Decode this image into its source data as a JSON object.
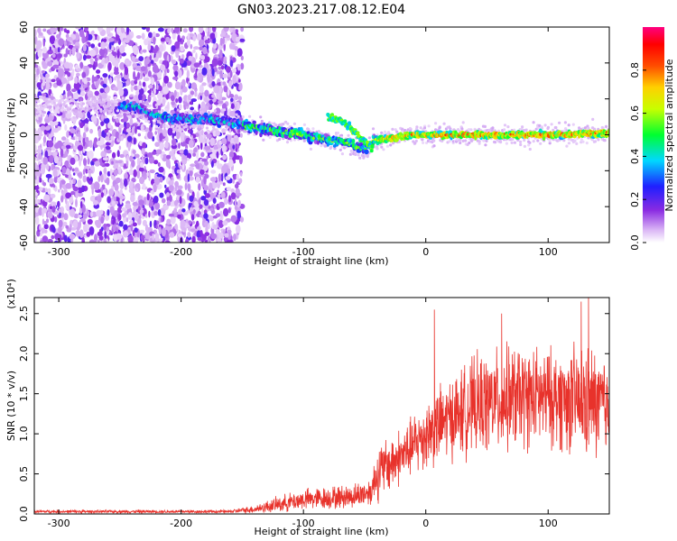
{
  "title": "GN03.2023.217.08.12.E04",
  "chart_data": [
    {
      "type": "heatmap",
      "xlabel": "Height of straight line (km)",
      "ylabel": "Frequency (Hz)",
      "xlim": [
        -320,
        150
      ],
      "ylim": [
        -60,
        60
      ],
      "xticks": [
        -300,
        -200,
        -100,
        0,
        100
      ],
      "yticks": [
        -60,
        -40,
        -20,
        0,
        20,
        40,
        60
      ],
      "grid": false,
      "colorbar": {
        "label": "Normalized spectral amplitude",
        "range": [
          0.0,
          1.0
        ],
        "ticks": [
          0.0,
          0.2,
          0.4,
          0.6,
          0.8
        ],
        "colormap": "rainbow"
      },
      "ridge_centerline": [
        {
          "x": -240,
          "y": 16
        },
        {
          "x": -225,
          "y": 12
        },
        {
          "x": -210,
          "y": 9
        },
        {
          "x": -190,
          "y": 9
        },
        {
          "x": -170,
          "y": 8
        },
        {
          "x": -155,
          "y": 6
        },
        {
          "x": -140,
          "y": 4
        },
        {
          "x": -120,
          "y": 2
        },
        {
          "x": -100,
          "y": 0
        },
        {
          "x": -80,
          "y": -3
        },
        {
          "x": -65,
          "y": -4
        },
        {
          "x": -50,
          "y": -8
        },
        {
          "x": -42,
          "y": -3
        },
        {
          "x": -30,
          "y": -2
        },
        {
          "x": -10,
          "y": 0
        },
        {
          "x": 20,
          "y": 0
        },
        {
          "x": 50,
          "y": 0
        },
        {
          "x": 80,
          "y": 0
        },
        {
          "x": 110,
          "y": 0
        },
        {
          "x": 150,
          "y": 1
        }
      ],
      "upper_branch": [
        {
          "x": -80,
          "y": 10
        },
        {
          "x": -70,
          "y": 8
        },
        {
          "x": -60,
          "y": 3
        },
        {
          "x": -50,
          "y": -4
        },
        {
          "x": -43,
          "y": -8
        }
      ]
    },
    {
      "type": "line",
      "xlabel": "Height of straight line (km)",
      "ylabel": "SNR (10 * v/v)",
      "y_multiplier": "(x10⁴)",
      "xlim": [
        -320,
        150
      ],
      "ylim": [
        0,
        2.7
      ],
      "xticks": [
        -300,
        -200,
        -100,
        0,
        100
      ],
      "yticks": [
        0.0,
        0.5,
        1.0,
        1.5,
        2.0,
        2.5
      ],
      "grid": false,
      "series": [
        {
          "color": "#e8322b",
          "envelope": [
            {
              "x": -320,
              "mean": 0.03,
              "amp": 0.02
            },
            {
              "x": -160,
              "mean": 0.03,
              "amp": 0.02
            },
            {
              "x": -140,
              "mean": 0.06,
              "amp": 0.05
            },
            {
              "x": -120,
              "mean": 0.12,
              "amp": 0.1
            },
            {
              "x": -100,
              "mean": 0.18,
              "amp": 0.13
            },
            {
              "x": -80,
              "mean": 0.2,
              "amp": 0.14
            },
            {
              "x": -60,
              "mean": 0.22,
              "amp": 0.15
            },
            {
              "x": -45,
              "mean": 0.28,
              "amp": 0.17
            },
            {
              "x": -40,
              "mean": 0.5,
              "amp": 0.35
            },
            {
              "x": -30,
              "mean": 0.62,
              "amp": 0.35
            },
            {
              "x": -15,
              "mean": 0.78,
              "amp": 0.35
            },
            {
              "x": 0,
              "mean": 1.0,
              "amp": 0.45
            },
            {
              "x": 20,
              "mean": 1.2,
              "amp": 0.5
            },
            {
              "x": 40,
              "mean": 1.35,
              "amp": 0.6
            },
            {
              "x": 70,
              "mean": 1.45,
              "amp": 0.65
            },
            {
              "x": 100,
              "mean": 1.45,
              "amp": 0.6
            },
            {
              "x": 130,
              "mean": 1.4,
              "amp": 0.7
            },
            {
              "x": 150,
              "mean": 1.35,
              "amp": 0.65
            }
          ],
          "spikes": [
            {
              "x": 7,
              "y": 2.55
            },
            {
              "x": 62,
              "y": 2.5
            },
            {
              "x": 127,
              "y": 2.65
            },
            {
              "x": 133,
              "y": 2.72
            }
          ]
        }
      ]
    }
  ]
}
